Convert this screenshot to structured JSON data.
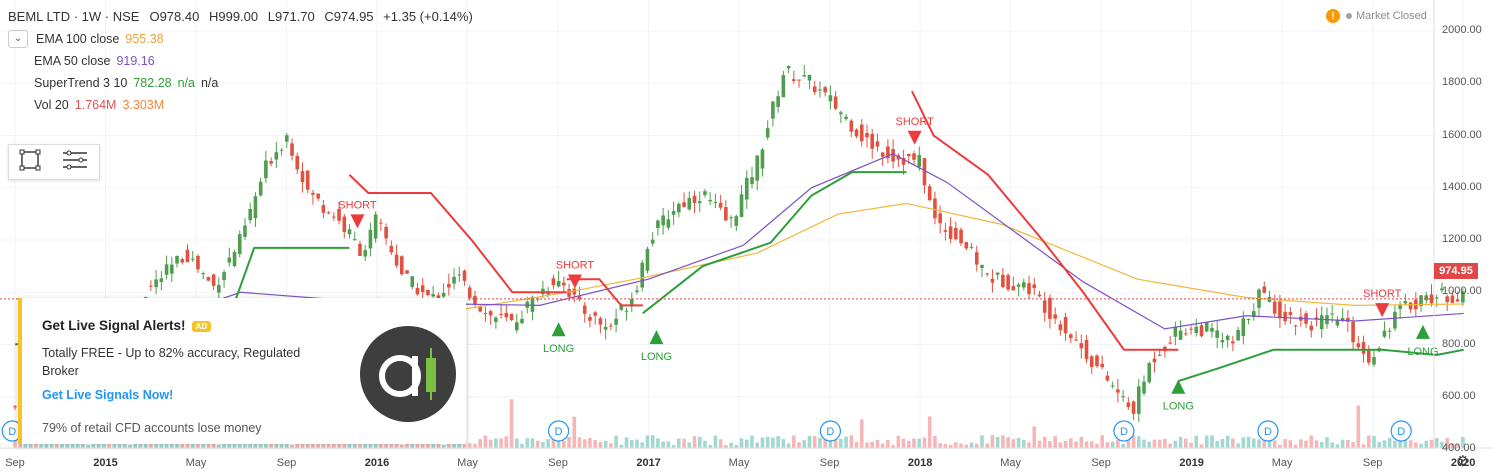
{
  "header": {
    "symbol": "BEML LTD · 1W · NSE",
    "open": "O978.40",
    "high": "H999.00",
    "low": "L971.70",
    "close": "C974.95",
    "change": "+1.35 (+0.14%)"
  },
  "indicators": [
    {
      "label": "EMA 100 close",
      "values": [
        "955.38"
      ],
      "colors": [
        "#e8a33a"
      ]
    },
    {
      "label": "EMA 50 close",
      "values": [
        "919.16"
      ],
      "colors": [
        "#7b52c7"
      ]
    },
    {
      "label": "SuperTrend 3 10",
      "values": [
        "782.28",
        "n/a",
        "n/a"
      ],
      "colors": [
        "#2e9e3a",
        "#2e9e3a",
        "#333333"
      ]
    },
    {
      "label": "Vol 20",
      "values": [
        "1.764M",
        "3.303M"
      ],
      "colors": [
        "#e05151",
        "#f0853a"
      ]
    }
  ],
  "toolbox": {
    "rect_icon": "rectangle-tool-icon",
    "menu_icon": "lines-menu-icon"
  },
  "status": {
    "warning": "!",
    "market": "Market Closed"
  },
  "ad": {
    "headline": "Get Live Signal Alerts!",
    "badge": "AD",
    "description": "Totally FREE - Up to 82% accuracy, Regulated Broker",
    "link": "Get Live Signals Now!",
    "risk": "79% of retail CFD accounts lose money",
    "logo_icon": "a-logo-icon"
  },
  "price_tag": "974.95",
  "colors": {
    "up": "#4f9d4f",
    "down": "#e0523f",
    "ema100": "#f0b73f",
    "ema50": "#7b52c7",
    "supertrend_up": "#2e9e3a",
    "supertrend_down": "#ee3a3a",
    "short_label": "#ee3a3a",
    "long_label": "#2e9e3a",
    "dividend": "#2196f3"
  },
  "chart_data": {
    "type": "candlestick",
    "y_axis": {
      "labels": [
        "2000.00",
        "1800.00",
        "1600.00",
        "1400.00",
        "1200.00",
        "1000.00",
        "800.00",
        "600.00",
        "400.00"
      ],
      "range": [
        330,
        2020
      ]
    },
    "x_axis": {
      "labels": [
        {
          "text": "Sep",
          "bold": false
        },
        {
          "text": "2015",
          "bold": true
        },
        {
          "text": "May",
          "bold": false
        },
        {
          "text": "Sep",
          "bold": false
        },
        {
          "text": "2016",
          "bold": true
        },
        {
          "text": "May",
          "bold": false
        },
        {
          "text": "Sep",
          "bold": false
        },
        {
          "text": "2017",
          "bold": true
        },
        {
          "text": "May",
          "bold": false
        },
        {
          "text": "Sep",
          "bold": false
        },
        {
          "text": "2018",
          "bold": true
        },
        {
          "text": "May",
          "bold": false
        },
        {
          "text": "Sep",
          "bold": false
        },
        {
          "text": "2019",
          "bold": true
        },
        {
          "text": "May",
          "bold": false
        },
        {
          "text": "Sep",
          "bold": false
        },
        {
          "text": "2020",
          "bold": true
        }
      ]
    },
    "close_path": [
      [
        2014.7,
        560
      ],
      [
        2014.9,
        700
      ],
      [
        2015.0,
        820
      ],
      [
        2015.15,
        1000
      ],
      [
        2015.3,
        1150
      ],
      [
        2015.4,
        1020
      ],
      [
        2015.5,
        1200
      ],
      [
        2015.6,
        1500
      ],
      [
        2015.67,
        1600
      ],
      [
        2015.75,
        1380
      ],
      [
        2015.85,
        1290
      ],
      [
        2015.95,
        1150
      ],
      [
        2016.0,
        1280
      ],
      [
        2016.1,
        1060
      ],
      [
        2016.2,
        970
      ],
      [
        2016.3,
        1060
      ],
      [
        2016.4,
        920
      ],
      [
        2016.5,
        880
      ],
      [
        2016.6,
        1000
      ],
      [
        2016.67,
        1060
      ],
      [
        2016.75,
        940
      ],
      [
        2016.85,
        860
      ],
      [
        2016.95,
        1000
      ],
      [
        2017.0,
        1200
      ],
      [
        2017.1,
        1330
      ],
      [
        2017.2,
        1380
      ],
      [
        2017.3,
        1260
      ],
      [
        2017.4,
        1500
      ],
      [
        2017.5,
        1850
      ],
      [
        2017.6,
        1800
      ],
      [
        2017.7,
        1700
      ],
      [
        2017.8,
        1580
      ],
      [
        2017.9,
        1520
      ],
      [
        2018.0,
        1500
      ],
      [
        2018.05,
        1280
      ],
      [
        2018.15,
        1200
      ],
      [
        2018.25,
        1060
      ],
      [
        2018.4,
        1020
      ],
      [
        2018.5,
        900
      ],
      [
        2018.6,
        780
      ],
      [
        2018.7,
        650
      ],
      [
        2018.78,
        540
      ],
      [
        2018.85,
        740
      ],
      [
        2018.95,
        860
      ],
      [
        2019.05,
        860
      ],
      [
        2019.15,
        800
      ],
      [
        2019.25,
        1000
      ],
      [
        2019.35,
        900
      ],
      [
        2019.45,
        880
      ],
      [
        2019.55,
        900
      ],
      [
        2019.65,
        740
      ],
      [
        2019.75,
        920
      ],
      [
        2019.85,
        980
      ],
      [
        2019.95,
        990
      ],
      [
        2020.0,
        975
      ]
    ],
    "ema100": [
      [
        2014.67,
        450
      ],
      [
        2015.3,
        830
      ],
      [
        2016.0,
        880
      ],
      [
        2016.7,
        1000
      ],
      [
        2017.0,
        1060
      ],
      [
        2017.4,
        1150
      ],
      [
        2017.7,
        1300
      ],
      [
        2017.95,
        1340
      ],
      [
        2018.3,
        1260
      ],
      [
        2018.8,
        1050
      ],
      [
        2019.2,
        980
      ],
      [
        2019.6,
        950
      ],
      [
        2020.0,
        955
      ]
    ],
    "ema50": [
      [
        2014.67,
        480
      ],
      [
        2015.0,
        820
      ],
      [
        2015.5,
        1000
      ],
      [
        2016.0,
        960
      ],
      [
        2016.6,
        950
      ],
      [
        2017.0,
        1050
      ],
      [
        2017.35,
        1180
      ],
      [
        2017.6,
        1400
      ],
      [
        2017.9,
        1530
      ],
      [
        2018.1,
        1420
      ],
      [
        2018.6,
        1040
      ],
      [
        2018.9,
        860
      ],
      [
        2019.2,
        910
      ],
      [
        2019.6,
        890
      ],
      [
        2020.0,
        919
      ]
    ],
    "supertrend": [
      {
        "trend": "long",
        "points": [
          [
            2014.67,
            800
          ],
          [
            2015.1,
            860
          ],
          [
            2015.45,
            880
          ],
          [
            2015.55,
            1170
          ],
          [
            2015.9,
            1170
          ]
        ]
      },
      {
        "trend": "short",
        "points": [
          [
            2015.9,
            1450
          ],
          [
            2015.97,
            1380
          ],
          [
            2016.2,
            1380
          ],
          [
            2016.35,
            1200
          ],
          [
            2016.5,
            1000
          ],
          [
            2016.7,
            1000
          ]
        ]
      },
      {
        "trend": "short",
        "points": [
          [
            2016.7,
            1050
          ],
          [
            2016.82,
            1050
          ],
          [
            2016.9,
            950
          ],
          [
            2016.98,
            950
          ]
        ]
      },
      {
        "trend": "long",
        "points": [
          [
            2016.98,
            920
          ],
          [
            2017.2,
            1100
          ],
          [
            2017.45,
            1190
          ],
          [
            2017.6,
            1370
          ],
          [
            2017.75,
            1460
          ],
          [
            2017.95,
            1460
          ]
        ]
      },
      {
        "trend": "short",
        "points": [
          [
            2017.97,
            1770
          ],
          [
            2018.05,
            1600
          ],
          [
            2018.25,
            1450
          ],
          [
            2018.45,
            1200
          ],
          [
            2018.6,
            1000
          ],
          [
            2018.75,
            780
          ],
          [
            2018.95,
            780
          ]
        ]
      },
      {
        "trend": "long",
        "points": [
          [
            2018.95,
            660
          ],
          [
            2019.1,
            710
          ],
          [
            2019.3,
            780
          ],
          [
            2019.7,
            780
          ],
          [
            2019.9,
            760
          ],
          [
            2020.0,
            780
          ]
        ]
      }
    ],
    "signals": [
      {
        "text": "SHORT",
        "year": 2015.93,
        "price": 1260,
        "dir": "down"
      },
      {
        "text": "SHORT",
        "year": 2016.73,
        "price": 1030,
        "dir": "down"
      },
      {
        "text": "LONG",
        "year": 2016.67,
        "price": 870,
        "dir": "up"
      },
      {
        "text": "LONG",
        "year": 2017.03,
        "price": 840,
        "dir": "up"
      },
      {
        "text": "SHORT",
        "year": 2017.98,
        "price": 1580,
        "dir": "down"
      },
      {
        "text": "LONG",
        "year": 2018.95,
        "price": 650,
        "dir": "up"
      },
      {
        "text": "SHORT",
        "year": 2019.7,
        "price": 920,
        "dir": "down"
      },
      {
        "text": "LONG",
        "year": 2019.85,
        "price": 860,
        "dir": "up"
      }
    ],
    "dividends": [
      {
        "label": "D",
        "year": 2014.66
      },
      {
        "label": "D",
        "year": 2016.67
      },
      {
        "label": "D",
        "year": 2017.67
      },
      {
        "label": "D",
        "year": 2018.75
      },
      {
        "label": "D",
        "year": 2019.28
      },
      {
        "label": "D",
        "year": 2019.77
      }
    ],
    "last_price": 974.95
  }
}
